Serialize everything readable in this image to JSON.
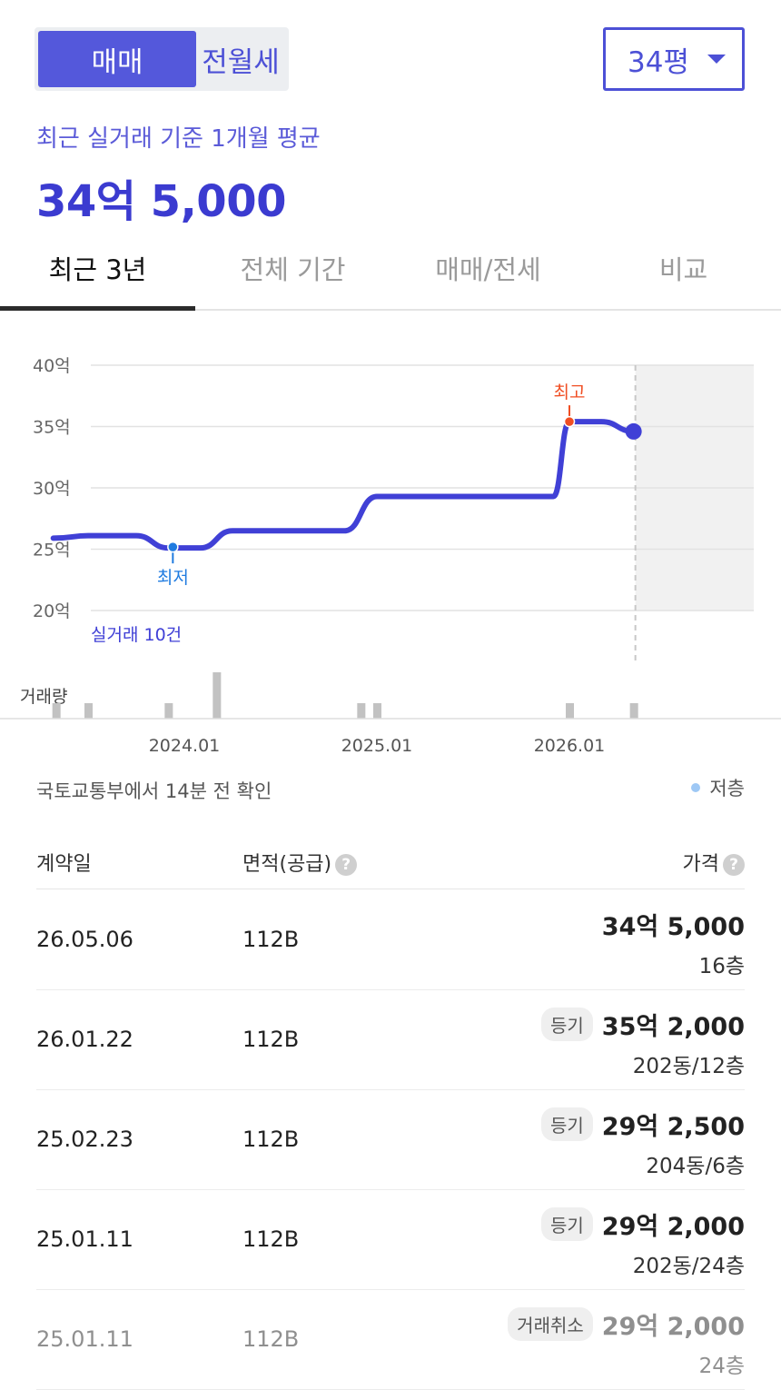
{
  "deal_type": {
    "options": [
      "매매",
      "전월세"
    ],
    "selected": "매매"
  },
  "size_select": {
    "value": "34평"
  },
  "summary": {
    "subtitle": "최근 실거래 기준 1개월 평균",
    "price": "34억 5,000"
  },
  "period_tabs": [
    {
      "label": "최근 3년",
      "active": true
    },
    {
      "label": "전체 기간",
      "active": false
    },
    {
      "label": "매매/전세",
      "active": false
    },
    {
      "label": "비교",
      "active": false
    }
  ],
  "chart_data": {
    "type": "line",
    "y_ticks": [
      "40억",
      "35억",
      "30억",
      "25억",
      "20억"
    ],
    "ylim": [
      20,
      40
    ],
    "y_unit": "억",
    "x_ticks": [
      "2024.01",
      "2025.01",
      "2026.01"
    ],
    "series": [
      {
        "values": [
          {
            "x": "2023.05",
            "y": 25.9
          },
          {
            "x": "2023.07",
            "y": 26.1
          },
          {
            "x": "2023.10",
            "y": 26.1
          },
          {
            "x": "2023.12",
            "y": 25.1
          },
          {
            "x": "2024.02",
            "y": 25.1
          },
          {
            "x": "2024.04",
            "y": 26.5
          },
          {
            "x": "2024.11",
            "y": 26.5
          },
          {
            "x": "2025.01",
            "y": 29.3
          },
          {
            "x": "2025.12",
            "y": 29.3
          },
          {
            "x": "2026.01",
            "y": 35.4
          },
          {
            "x": "2026.03",
            "y": 35.4
          },
          {
            "x": "2026.05",
            "y": 34.6
          }
        ]
      }
    ],
    "annotations": {
      "low": {
        "label": "최저",
        "x": "2023.12",
        "y": 25.1
      },
      "high": {
        "label": "최고",
        "x": "2026.01",
        "y": 35.4
      }
    },
    "deal_count_label": "실거래 10건",
    "volume_label": "거래량",
    "volume_bars": [
      {
        "x": "2023.05",
        "count": 1
      },
      {
        "x": "2023.07",
        "count": 1
      },
      {
        "x": "2023.12",
        "count": 1
      },
      {
        "x": "2024.03",
        "count": 3
      },
      {
        "x": "2024.12",
        "count": 1
      },
      {
        "x": "2025.01",
        "count": 1
      },
      {
        "x": "2026.01",
        "count": 1
      },
      {
        "x": "2026.05",
        "count": 1
      }
    ],
    "colors": {
      "line": "#4040d6",
      "high": "#f04e23",
      "low": "#1f7be0",
      "future_band": "#f1f1f1",
      "volume": "#c2c2c2"
    }
  },
  "source_note": "국토교통부에서 14분 전 확인",
  "legend_label": "저층",
  "table": {
    "headers": {
      "date": "계약일",
      "area": "면적(공급)",
      "price": "가격"
    },
    "rows": [
      {
        "date": "26.05.06",
        "area": "112B",
        "badge": "",
        "price": "34억 5,000",
        "floor": "16층",
        "cancelled": false
      },
      {
        "date": "26.01.22",
        "area": "112B",
        "badge": "등기",
        "price": "35억 2,000",
        "floor": "202동/12층",
        "cancelled": false
      },
      {
        "date": "25.02.23",
        "area": "112B",
        "badge": "등기",
        "price": "29억 2,500",
        "floor": "204동/6층",
        "cancelled": false
      },
      {
        "date": "25.01.11",
        "area": "112B",
        "badge": "등기",
        "price": "29억 2,000",
        "floor": "202동/24층",
        "cancelled": false
      },
      {
        "date": "25.01.11",
        "area": "112B",
        "badge": "거래취소",
        "price": "29억 2,000",
        "floor": "24층",
        "cancelled": true
      }
    ]
  }
}
